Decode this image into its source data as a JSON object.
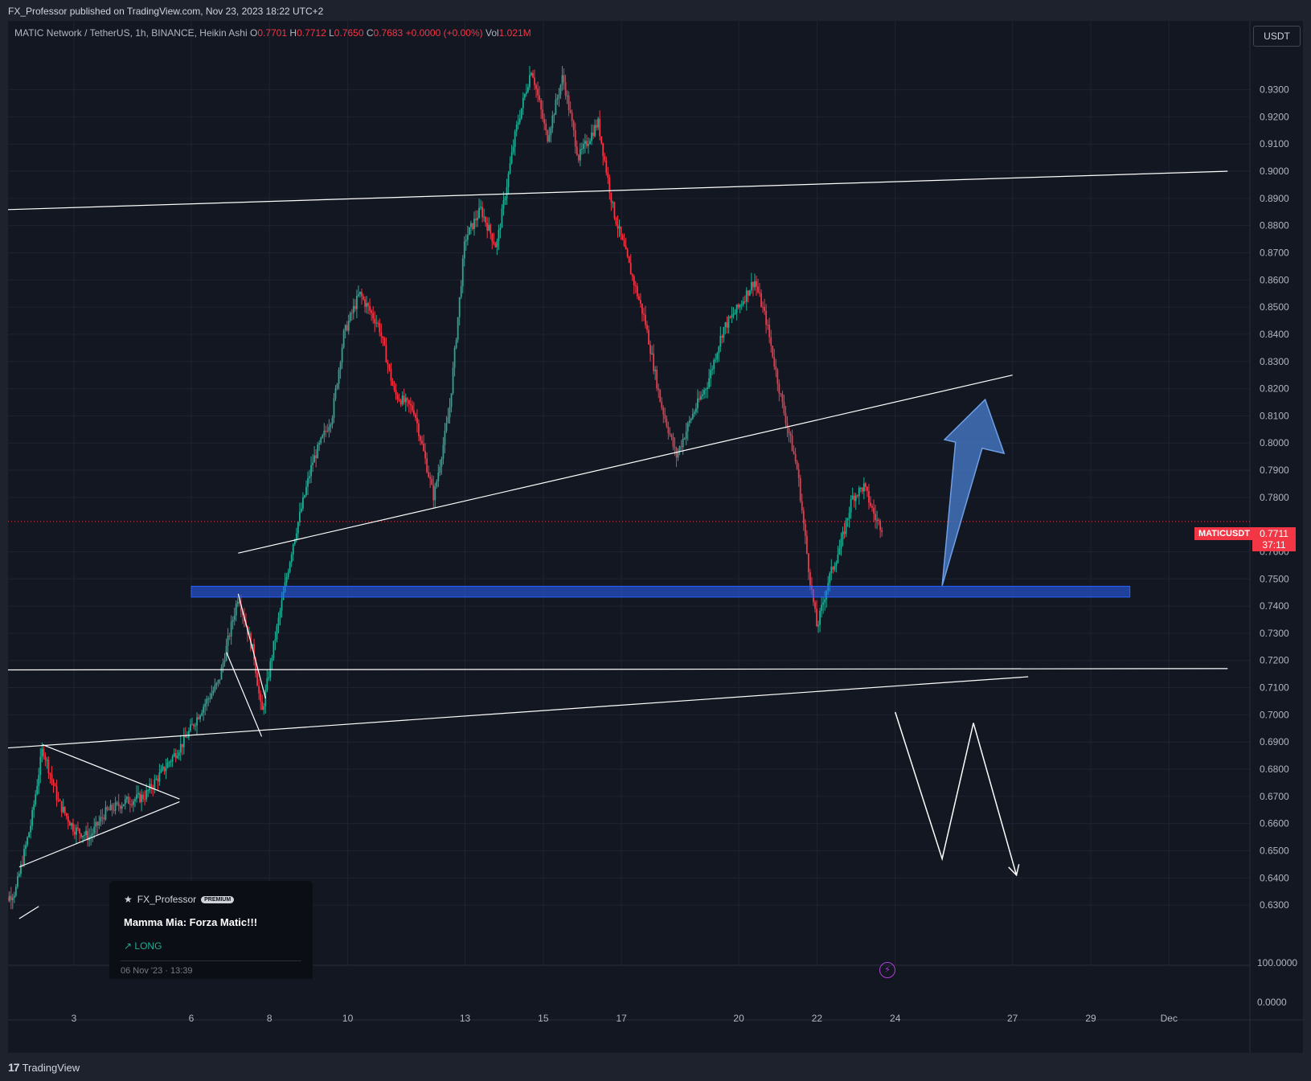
{
  "header": {
    "published": "FX_Professor published on TradingView.com, Nov 23, 2023 18:22 UTC+2"
  },
  "legend": {
    "symbol": "MATIC Network / TetherUS, 1h, BINANCE, Heikin Ashi",
    "o_label": "O",
    "o_value": "0.7701",
    "h_label": "H",
    "h_value": "0.7712",
    "l_label": "L",
    "l_value": "0.7650",
    "c_label": "C",
    "c_value": "0.7683",
    "change": "+0.0000 (+0.00%)",
    "vol_label": "Vol",
    "vol_value": "1.021M"
  },
  "currency_button": "USDT",
  "price_tag": {
    "symbol": "MATICUSDT",
    "price": "0.7711",
    "countdown": "37:11"
  },
  "idea_card": {
    "author": "FX_Professor",
    "badge": "PREMIUM",
    "title": "Mamma Mia: Forza Matic!!!",
    "direction": "LONG",
    "date": "06 Nov '23 · 13:39"
  },
  "footer": {
    "brand": "TradingView"
  },
  "icons": [
    "tradingview-logo-icon",
    "flash-icon",
    "trend-up-icon",
    "emoji-icon"
  ],
  "colors": {
    "up": "#22ab94",
    "down": "#f23645",
    "zone": "#2962ff",
    "arrow": "#4a7fd0",
    "background": "#131722"
  },
  "chart_data": {
    "type": "candlestick",
    "style": "Heikin Ashi",
    "interval": "1h",
    "exchange": "BINANCE",
    "y_ticks": [
      "0.9300",
      "0.9200",
      "0.9100",
      "0.9000",
      "0.8900",
      "0.8800",
      "0.8700",
      "0.8600",
      "0.8500",
      "0.8400",
      "0.8300",
      "0.8200",
      "0.8100",
      "0.8000",
      "0.7900",
      "0.7800",
      "0.7600",
      "0.7500",
      "0.7400",
      "0.7300",
      "0.7200",
      "0.7100",
      "0.7000",
      "0.6900",
      "0.6800",
      "0.6700",
      "0.6600",
      "0.6500",
      "0.6400",
      "0.6300"
    ],
    "volume_ticks": [
      "100.0000",
      "0.0000"
    ],
    "ylim": [
      0.625,
      0.942
    ],
    "x_ticks": [
      {
        "label": "3",
        "day": 3
      },
      {
        "label": "6",
        "day": 6
      },
      {
        "label": "8",
        "day": 8
      },
      {
        "label": "10",
        "day": 10
      },
      {
        "label": "13",
        "day": 13
      },
      {
        "label": "15",
        "day": 15
      },
      {
        "label": "17",
        "day": 17
      },
      {
        "label": "20",
        "day": 20
      },
      {
        "label": "22",
        "day": 22
      },
      {
        "label": "24",
        "day": 24
      },
      {
        "label": "27",
        "day": 27
      },
      {
        "label": "29",
        "day": 29
      },
      {
        "label": "Dec",
        "day": 31
      }
    ],
    "price_path": [
      [
        1.1,
        0.63
      ],
      [
        1.5,
        0.635
      ],
      [
        1.9,
        0.66
      ],
      [
        2.2,
        0.688
      ],
      [
        2.6,
        0.668
      ],
      [
        3.0,
        0.658
      ],
      [
        3.4,
        0.655
      ],
      [
        3.8,
        0.664
      ],
      [
        4.3,
        0.668
      ],
      [
        4.8,
        0.67
      ],
      [
        5.3,
        0.68
      ],
      [
        5.8,
        0.69
      ],
      [
        6.3,
        0.703
      ],
      [
        6.7,
        0.712
      ],
      [
        7.2,
        0.744
      ],
      [
        7.6,
        0.722
      ],
      [
        7.8,
        0.7
      ],
      [
        8.1,
        0.725
      ],
      [
        8.6,
        0.763
      ],
      [
        9.1,
        0.793
      ],
      [
        9.6,
        0.81
      ],
      [
        9.9,
        0.84
      ],
      [
        10.3,
        0.855
      ],
      [
        10.8,
        0.843
      ],
      [
        11.2,
        0.818
      ],
      [
        11.7,
        0.812
      ],
      [
        12.2,
        0.78
      ],
      [
        12.6,
        0.812
      ],
      [
        13.0,
        0.875
      ],
      [
        13.4,
        0.886
      ],
      [
        13.8,
        0.872
      ],
      [
        14.3,
        0.915
      ],
      [
        14.7,
        0.938
      ],
      [
        15.1,
        0.912
      ],
      [
        15.5,
        0.935
      ],
      [
        15.9,
        0.905
      ],
      [
        16.4,
        0.918
      ],
      [
        16.8,
        0.885
      ],
      [
        17.2,
        0.865
      ],
      [
        17.6,
        0.845
      ],
      [
        18.0,
        0.815
      ],
      [
        18.4,
        0.795
      ],
      [
        18.8,
        0.81
      ],
      [
        19.2,
        0.822
      ],
      [
        19.6,
        0.842
      ],
      [
        20.0,
        0.85
      ],
      [
        20.4,
        0.86
      ],
      [
        20.7,
        0.845
      ],
      [
        21.1,
        0.815
      ],
      [
        21.5,
        0.79
      ],
      [
        21.8,
        0.752
      ],
      [
        22.0,
        0.732
      ],
      [
        22.3,
        0.75
      ],
      [
        22.6,
        0.762
      ],
      [
        22.9,
        0.78
      ],
      [
        23.2,
        0.784
      ],
      [
        23.5,
        0.772
      ],
      [
        23.7,
        0.7683
      ]
    ],
    "current_price": 0.7711,
    "last_close": 0.7683,
    "drawings": {
      "trendlines": [
        {
          "name": "upper-resistance-line",
          "points": [
            [
              0.5,
              0.8855
            ],
            [
              32.5,
              0.9
            ]
          ]
        },
        {
          "name": "middle-ascending-trendline",
          "points": [
            [
              7.2,
              0.7595
            ],
            [
              27.0,
              0.825
            ]
          ]
        },
        {
          "name": "horizontal-support-line",
          "points": [
            [
              0.5,
              0.7165
            ],
            [
              32.5,
              0.717
            ]
          ]
        },
        {
          "name": "lower-ascending-trendline",
          "points": [
            [
              0.5,
              0.687
            ],
            [
              27.4,
              0.714
            ]
          ]
        },
        {
          "name": "triangle-upper-line",
          "points": [
            [
              2.2,
              0.689
            ],
            [
              5.7,
              0.669
            ]
          ]
        },
        {
          "name": "triangle-lower-line",
          "points": [
            [
              1.6,
              0.644
            ],
            [
              5.7,
              0.668
            ]
          ]
        },
        {
          "name": "pullback-line-a",
          "points": [
            [
              7.2,
              0.7445
            ],
            [
              7.9,
              0.706
            ]
          ]
        },
        {
          "name": "pullback-line-b",
          "points": [
            [
              6.9,
              0.723
            ],
            [
              7.8,
              0.692
            ]
          ]
        },
        {
          "name": "cut-line",
          "points": [
            [
              1.6,
              0.625
            ],
            [
              2.1,
              0.6295
            ]
          ]
        }
      ],
      "zones": [
        {
          "name": "blue-support-zone",
          "from": 6.0,
          "to": 30.0,
          "low": 0.7433,
          "high": 0.7473
        }
      ],
      "projection_arrow": {
        "from": [
          25.2,
          0.7475
        ],
        "to": [
          26.3,
          0.816
        ]
      },
      "zigzag_path": [
        [
          24.0,
          0.701
        ],
        [
          25.2,
          0.647
        ],
        [
          26.0,
          0.697
        ],
        [
          27.1,
          0.641
        ]
      ]
    }
  }
}
